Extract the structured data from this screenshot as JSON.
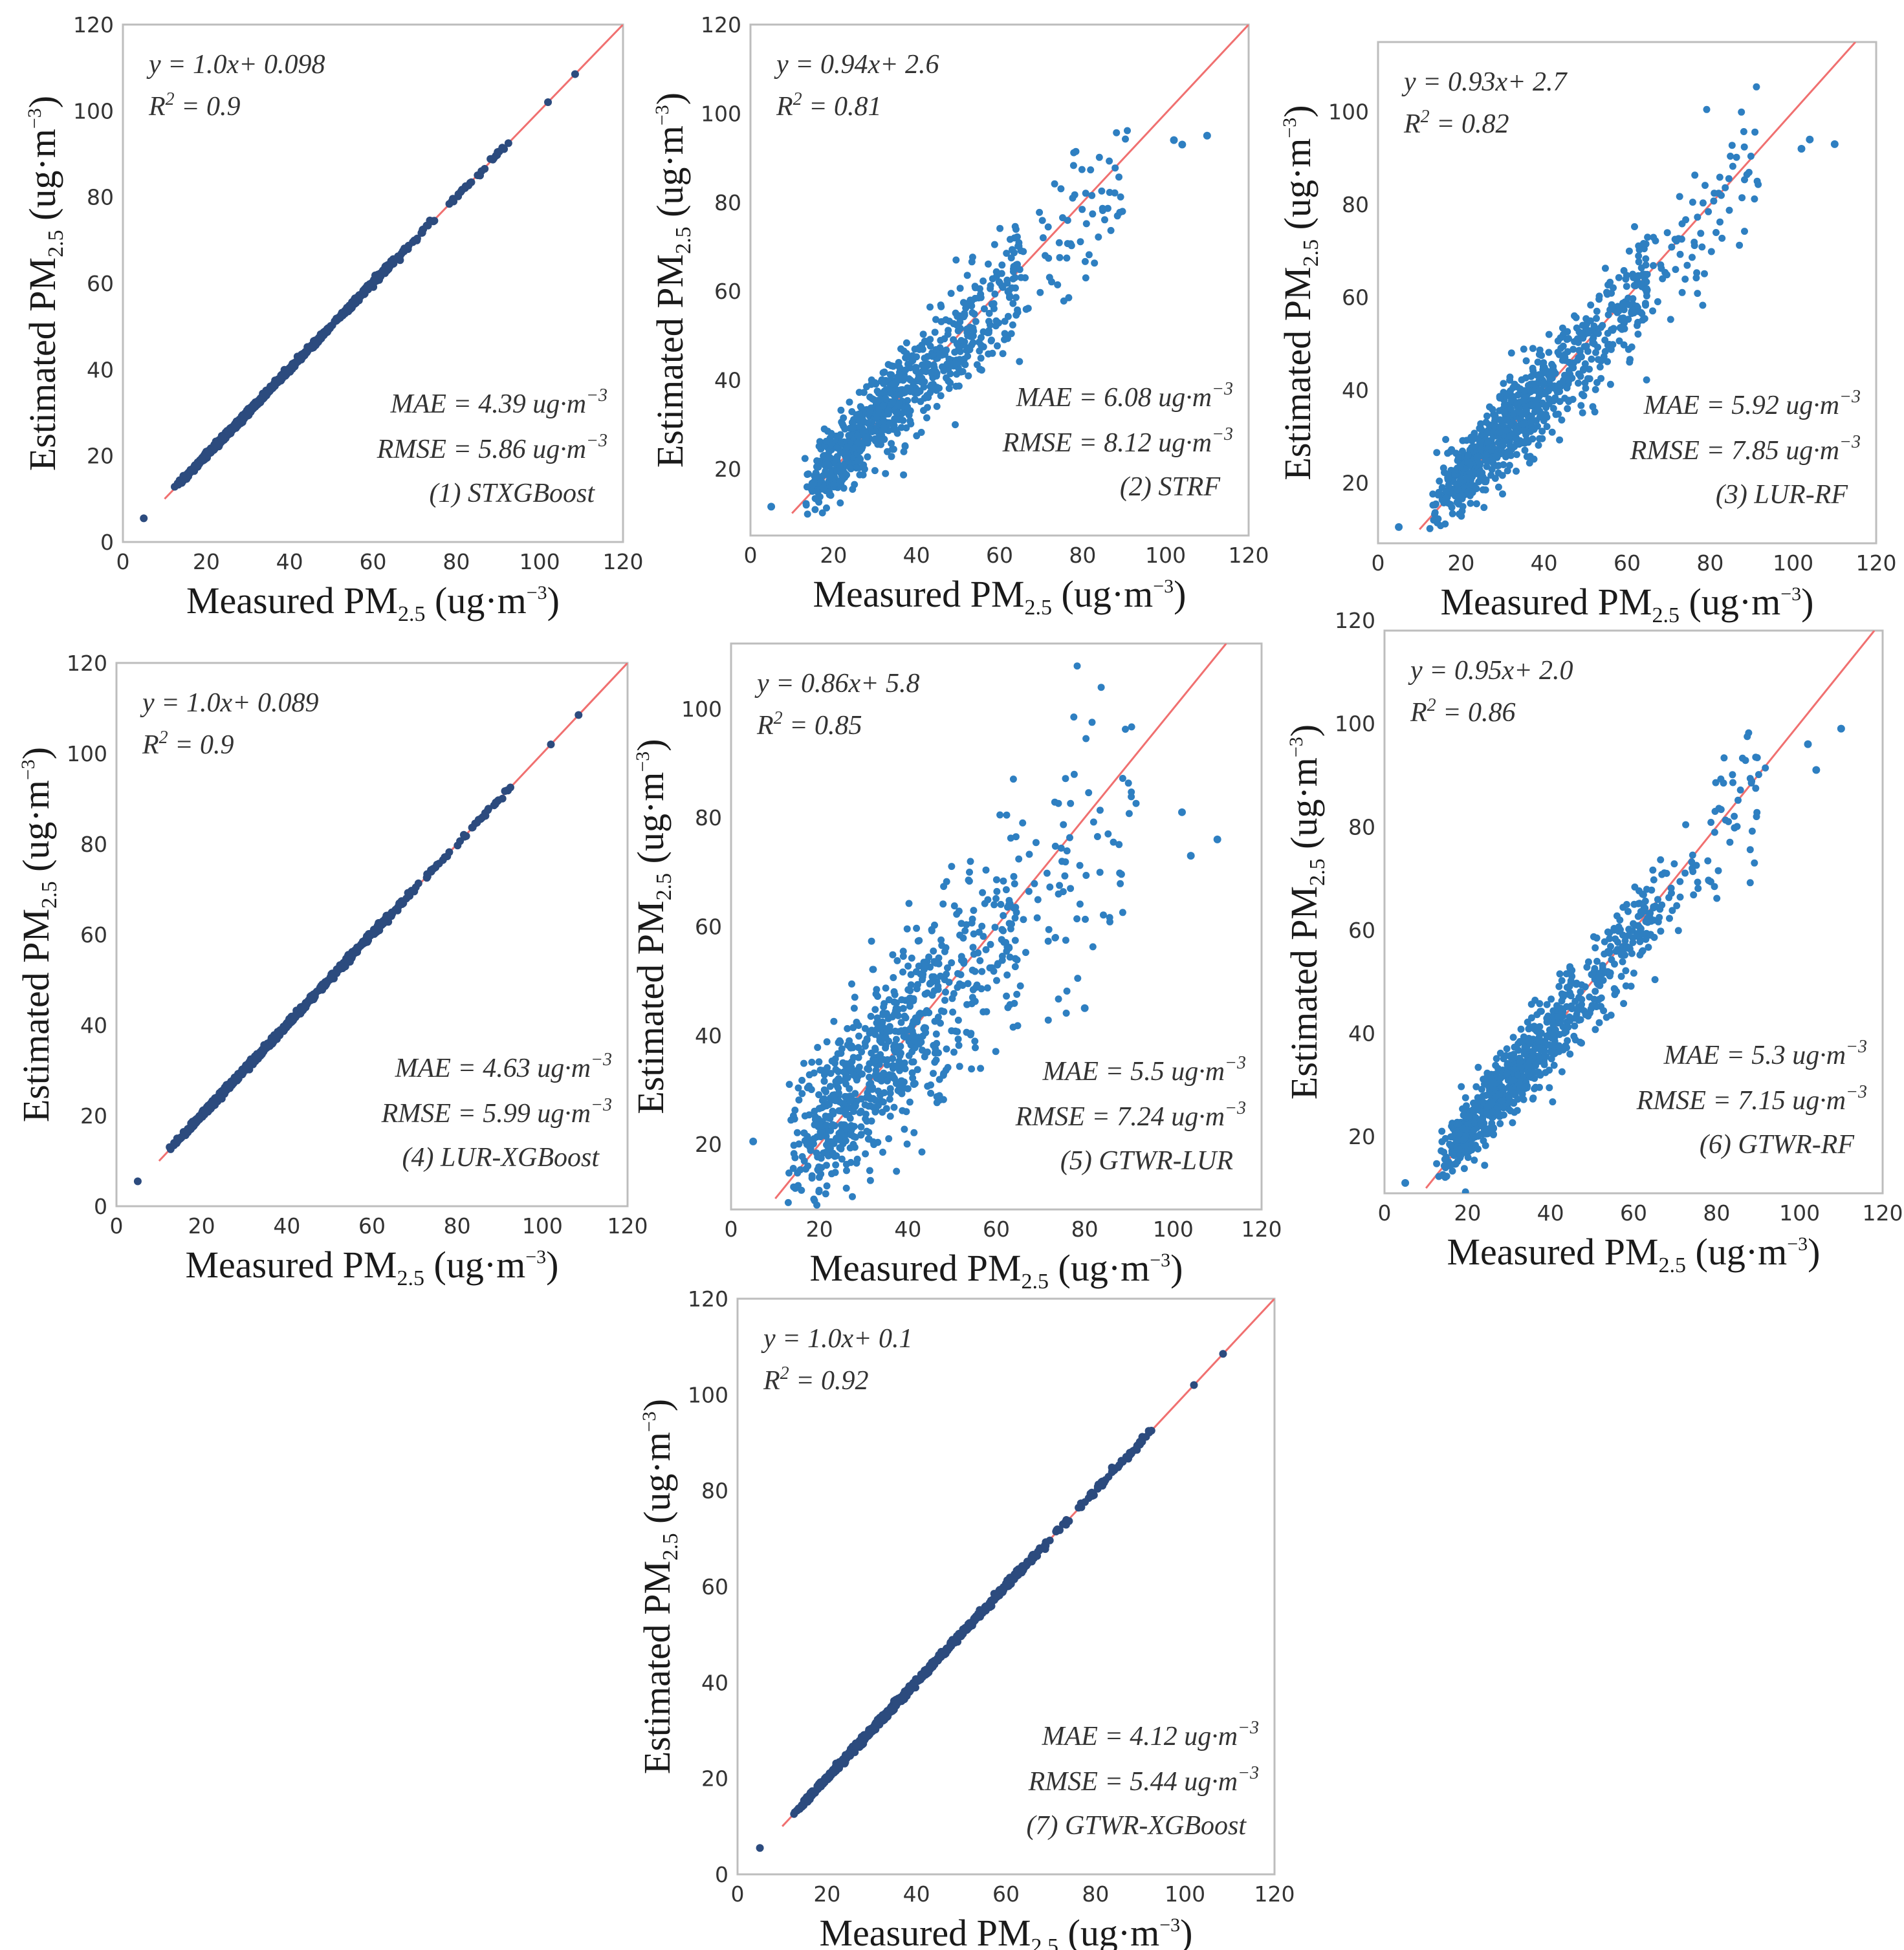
{
  "chart_data": [
    {
      "type": "scatter",
      "panel": "(1) STXGBoost",
      "xlim": [
        0,
        120
      ],
      "ylim": [
        0,
        120
      ],
      "xticks": [
        0,
        20,
        40,
        60,
        80,
        100,
        120
      ],
      "yticks": [
        0,
        20,
        40,
        60,
        80,
        100,
        120
      ],
      "xlabel": "Measured PM2.5 (ug·m-3)",
      "ylabel": "Estimated PM2.5 (ug·m-3)",
      "fit_text": "y = 1.0x+ 0.098",
      "r2_text": "R2 = 0.9",
      "mae_text": "MAE = 4.39 ug·m−3",
      "rmse_text": "RMSE = 5.86 ug·m−3",
      "label": "(1) STXGBoost",
      "fit": {
        "slope": 1.0,
        "intercept": 0.098
      },
      "spread": 0.5,
      "outliers": [
        [
          5,
          5.5
        ],
        [
          92.5,
          92.5
        ],
        [
          102,
          102
        ],
        [
          108.5,
          108.5
        ]
      ]
    },
    {
      "type": "scatter",
      "panel": "(2) STRF",
      "xlim": [
        0,
        120
      ],
      "ylim": [
        5,
        120
      ],
      "xticks": [
        0,
        20,
        40,
        60,
        80,
        100,
        120
      ],
      "yticks": [
        20,
        40,
        60,
        80,
        100,
        120
      ],
      "xlabel": "Measured PM2.5 (ug·m-3)",
      "ylabel": "Estimated PM2.5 (ug·m-3)",
      "fit_text": "y = 0.94x+ 2.6",
      "r2_text": "R2 = 0.81",
      "mae_text": "MAE = 6.08 ug·m−3",
      "rmse_text": "RMSE = 8.12 ug·m−3",
      "label": "(2) STRF",
      "fit": {
        "slope": 0.94,
        "intercept": 2.6
      },
      "spread": 4.5,
      "outliers": [
        [
          5,
          11.5
        ],
        [
          102,
          94
        ],
        [
          104,
          93
        ],
        [
          110,
          95
        ]
      ]
    },
    {
      "type": "scatter",
      "panel": "(3) LUR-RF",
      "xlim": [
        0,
        120
      ],
      "ylim": [
        7,
        115
      ],
      "xticks": [
        0,
        20,
        40,
        60,
        80,
        100,
        120
      ],
      "yticks": [
        20,
        40,
        60,
        80,
        100
      ],
      "xlabel": "Measured PM2.5 (ug·m-3)",
      "ylabel": "Estimated PM2.5 (ug·m-3)",
      "fit_text": "y = 0.93x+ 2.7",
      "r2_text": "R2 = 0.82",
      "mae_text": "MAE = 5.92 ug·m−3",
      "rmse_text": "RMSE = 7.85 ug·m−3",
      "label": "(3) LUR-RF",
      "fit": {
        "slope": 0.93,
        "intercept": 2.7
      },
      "spread": 4.2,
      "outliers": [
        [
          5,
          10.5
        ],
        [
          102,
          92
        ],
        [
          104,
          94
        ],
        [
          110,
          93
        ]
      ]
    },
    {
      "type": "scatter",
      "panel": "(4) LUR-XGBoost",
      "xlim": [
        0,
        120
      ],
      "ylim": [
        0,
        120
      ],
      "xticks": [
        0,
        20,
        40,
        60,
        80,
        100,
        120
      ],
      "yticks": [
        0,
        20,
        40,
        60,
        80,
        100,
        120
      ],
      "xlabel": "Measured PM2.5 (ug·m-3)",
      "ylabel": "Estimated PM2.5 (ug·m-3)",
      "fit_text": "y = 1.0x+ 0.089",
      "r2_text": "R2 = 0.9",
      "mae_text": "MAE = 4.63 ug·m−3",
      "rmse_text": "RMSE = 5.99 ug·m−3",
      "label": "(4) LUR-XGBoost",
      "fit": {
        "slope": 1.0,
        "intercept": 0.089
      },
      "spread": 0.5,
      "outliers": [
        [
          5,
          5.5
        ],
        [
          92.5,
          92.5
        ],
        [
          102,
          102
        ],
        [
          108.5,
          108.5
        ]
      ]
    },
    {
      "type": "scatter",
      "panel": "(5) GTWR-LUR",
      "xlim": [
        0,
        120
      ],
      "ylim": [
        8,
        112
      ],
      "xticks": [
        0,
        20,
        40,
        60,
        80,
        100,
        120
      ],
      "yticks": [
        20,
        40,
        60,
        80,
        100
      ],
      "xlabel": "Measured PM2.5 (ug·m-3)",
      "ylabel": "Estimated PM2.5 (ug·m-3)",
      "fit_text": "y = 0.86x+ 5.8",
      "r2_text": "R2 = 0.85",
      "mae_text": "MAE = 5.5 ug·m−3",
      "rmse_text": "RMSE = 7.24 ug·m−3",
      "label": "(5) GTWR-LUR",
      "fit": {
        "slope": 0.86,
        "intercept": 5.8
      },
      "spread": 7.5,
      "outliers": [
        [
          5,
          20.5
        ],
        [
          102,
          81
        ],
        [
          104,
          73
        ],
        [
          110,
          76
        ],
        [
          80,
          45
        ]
      ]
    },
    {
      "type": "scatter",
      "panel": "(6) GTWR-RF",
      "xlim": [
        0,
        120
      ],
      "ylim": [
        9,
        118
      ],
      "xticks": [
        0,
        20,
        40,
        60,
        80,
        100,
        120
      ],
      "yticks": [
        20,
        40,
        60,
        80,
        100,
        120
      ],
      "xlabel": "Measured PM2.5 (ug·m-3)",
      "ylabel": "Estimated PM2.5 (ug·m-3)",
      "fit_text": "y = 0.95x+ 2.0",
      "r2_text": "R2 = 0.86",
      "mae_text": "MAE = 5.3 ug·m−3",
      "rmse_text": "RMSE = 7.15 ug·m−3",
      "label": "(6) GTWR-RF",
      "fit": {
        "slope": 0.95,
        "intercept": 2.0
      },
      "spread": 3.6,
      "outliers": [
        [
          5,
          11
        ],
        [
          102,
          96
        ],
        [
          104,
          91
        ],
        [
          110,
          99
        ]
      ]
    },
    {
      "type": "scatter",
      "panel": "(7) GTWR-XGBoost",
      "xlim": [
        0,
        120
      ],
      "ylim": [
        0,
        120
      ],
      "xticks": [
        0,
        20,
        40,
        60,
        80,
        100,
        120
      ],
      "yticks": [
        0,
        20,
        40,
        60,
        80,
        100,
        120
      ],
      "xlabel": "Measured PM2.5 (ug·m-3)",
      "ylabel": "Estimated PM2.5 (ug·m-3)",
      "fit_text": "y = 1.0x+ 0.1",
      "r2_text": "R2 = 0.92",
      "mae_text": "MAE = 4.12 ug·m−3",
      "rmse_text": "RMSE = 5.44 ug·m−3",
      "label": "(7) GTWR-XGBoost",
      "fit": {
        "slope": 1.0,
        "intercept": 0.1
      },
      "spread": 0.5,
      "outliers": [
        [
          5,
          5.5
        ],
        [
          92.5,
          92.5
        ],
        [
          102,
          102
        ],
        [
          108.5,
          108.5
        ]
      ]
    }
  ],
  "axis_text": {
    "measured": "Measured PM",
    "estimated": "Estimated PM",
    "sub": "2.5",
    "unit_open": " (ug·m",
    "unit_sup": "−3",
    "unit_close": ")"
  },
  "colors": {
    "points": "#2e7fc1",
    "dense_points": "#2c4b7e",
    "reference_line": "#f07070"
  }
}
